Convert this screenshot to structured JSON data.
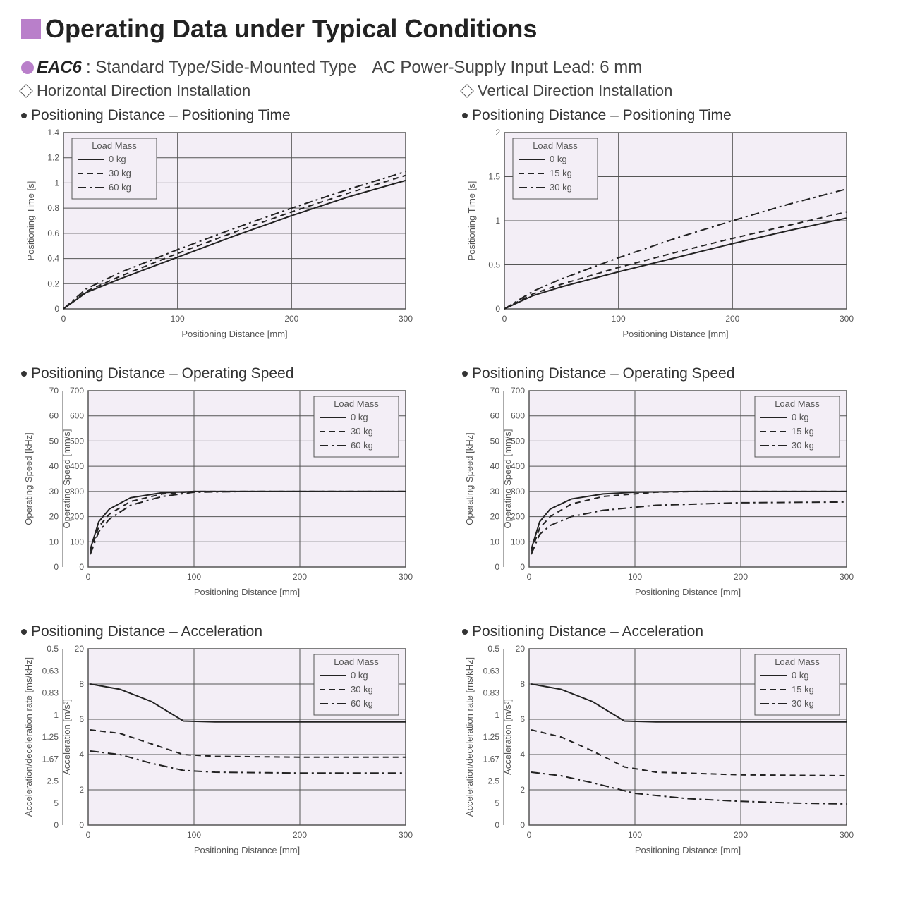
{
  "main_title": "Operating Data under Typical Conditions",
  "sub_label_bold": "EAC6",
  "sub_label_rest": ": Standard Type/Side-Mounted Type",
  "sub_right": "AC Power-Supply Input  Lead: 6 mm",
  "colors": {
    "plot_bg": "#f3eef6",
    "grid": "#555555",
    "line": "#222222",
    "axis_text": "#555555"
  },
  "font": {
    "axis_label_pt": 13,
    "tick_pt": 12,
    "legend_pt": 13
  },
  "columns": [
    {
      "dir_title": "Horizontal Direction Installation",
      "charts": [
        {
          "id": "h-time",
          "title": "Positioning Distance – Positioning Time",
          "xlabel": "Positioning Distance [mm]",
          "ylabel": "Positioning Time [s]",
          "xlim": [
            0,
            300
          ],
          "xticks": [
            0,
            100,
            200,
            300
          ],
          "ylim": [
            0,
            1.4
          ],
          "yticks": [
            0,
            0.2,
            0.4,
            0.6,
            0.8,
            1.0,
            1.2,
            1.4
          ],
          "legend_title": "Load Mass",
          "legend_pos": "top-left",
          "y2": null,
          "series": [
            {
              "label": "0 kg",
              "dash": "solid",
              "points": [
                [
                  0,
                  0
                ],
                [
                  20,
                  0.13
                ],
                [
                  50,
                  0.24
                ],
                [
                  100,
                  0.41
                ],
                [
                  150,
                  0.58
                ],
                [
                  200,
                  0.74
                ],
                [
                  250,
                  0.89
                ],
                [
                  300,
                  1.02
                ]
              ]
            },
            {
              "label": "30 kg",
              "dash": "dashed",
              "points": [
                [
                  0,
                  0
                ],
                [
                  20,
                  0.14
                ],
                [
                  50,
                  0.26
                ],
                [
                  100,
                  0.44
                ],
                [
                  150,
                  0.61
                ],
                [
                  200,
                  0.77
                ],
                [
                  250,
                  0.92
                ],
                [
                  300,
                  1.06
                ]
              ]
            },
            {
              "label": "60 kg",
              "dash": "dashdot",
              "points": [
                [
                  0,
                  0
                ],
                [
                  20,
                  0.16
                ],
                [
                  50,
                  0.29
                ],
                [
                  100,
                  0.47
                ],
                [
                  150,
                  0.64
                ],
                [
                  200,
                  0.8
                ],
                [
                  250,
                  0.95
                ],
                [
                  300,
                  1.09
                ]
              ]
            }
          ]
        },
        {
          "id": "h-speed",
          "title": "Positioning Distance – Operating Speed",
          "xlabel": "Positioning Distance [mm]",
          "ylabel": "Operating Speed [mm/s]",
          "xlim": [
            0,
            300
          ],
          "xticks": [
            0,
            100,
            200,
            300
          ],
          "ylim": [
            0,
            700
          ],
          "yticks": [
            0,
            100,
            200,
            300,
            400,
            500,
            600,
            700
          ],
          "legend_title": "Load Mass",
          "legend_pos": "top-right",
          "y2": {
            "label": "Operating Speed [kHz]",
            "ticks": [
              0,
              10,
              20,
              30,
              40,
              50,
              60,
              70
            ]
          },
          "series": [
            {
              "label": "0 kg",
              "dash": "solid",
              "points": [
                [
                  2,
                  70
                ],
                [
                  10,
                  180
                ],
                [
                  20,
                  230
                ],
                [
                  40,
                  275
                ],
                [
                  70,
                  295
                ],
                [
                  100,
                  300
                ],
                [
                  200,
                  300
                ],
                [
                  300,
                  300
                ]
              ]
            },
            {
              "label": "30 kg",
              "dash": "dashed",
              "points": [
                [
                  2,
                  60
                ],
                [
                  10,
                  160
                ],
                [
                  20,
                  210
                ],
                [
                  40,
                  260
                ],
                [
                  70,
                  290
                ],
                [
                  100,
                  300
                ],
                [
                  200,
                  300
                ],
                [
                  300,
                  300
                ]
              ]
            },
            {
              "label": "60 kg",
              "dash": "dashdot",
              "points": [
                [
                  2,
                  50
                ],
                [
                  10,
                  140
                ],
                [
                  20,
                  190
                ],
                [
                  40,
                  245
                ],
                [
                  70,
                  280
                ],
                [
                  100,
                  297
                ],
                [
                  150,
                  300
                ],
                [
                  300,
                  300
                ]
              ]
            }
          ]
        },
        {
          "id": "h-accel",
          "title": "Positioning Distance – Acceleration",
          "xlabel": "Positioning Distance [mm]",
          "ylabel": "Acceleration [m/s²]",
          "xlim": [
            0,
            300
          ],
          "xticks": [
            0,
            100,
            200,
            300
          ],
          "ylim": [
            0,
            20
          ],
          "yticks": [
            0,
            2,
            4,
            6,
            8,
            20
          ],
          "legend_title": "Load Mass",
          "legend_pos": "top-right",
          "y2": {
            "label": "Acceleration/deceleration rate [ms/kHz]",
            "ticks": [
              0,
              5.0,
              2.5,
              1.67,
              1.25,
              1.0,
              0.83,
              0.63,
              0.5
            ]
          },
          "series": [
            {
              "label": "0 kg",
              "dash": "solid",
              "points": [
                [
                  2,
                  8.0
                ],
                [
                  30,
                  7.7
                ],
                [
                  60,
                  7.0
                ],
                [
                  90,
                  5.9
                ],
                [
                  120,
                  5.85
                ],
                [
                  200,
                  5.85
                ],
                [
                  300,
                  5.85
                ]
              ]
            },
            {
              "label": "30 kg",
              "dash": "dashed",
              "points": [
                [
                  2,
                  5.4
                ],
                [
                  30,
                  5.2
                ],
                [
                  60,
                  4.6
                ],
                [
                  90,
                  4.0
                ],
                [
                  120,
                  3.9
                ],
                [
                  200,
                  3.85
                ],
                [
                  300,
                  3.85
                ]
              ]
            },
            {
              "label": "60 kg",
              "dash": "dashdot",
              "points": [
                [
                  2,
                  4.2
                ],
                [
                  30,
                  4.0
                ],
                [
                  60,
                  3.5
                ],
                [
                  90,
                  3.1
                ],
                [
                  120,
                  3.0
                ],
                [
                  200,
                  2.95
                ],
                [
                  300,
                  2.95
                ]
              ]
            }
          ]
        }
      ]
    },
    {
      "dir_title": "Vertical Direction Installation",
      "charts": [
        {
          "id": "v-time",
          "title": "Positioning Distance – Positioning Time",
          "xlabel": "Positioning Distance [mm]",
          "ylabel": "Positioning Time [s]",
          "xlim": [
            0,
            300
          ],
          "xticks": [
            0,
            100,
            200,
            300
          ],
          "ylim": [
            0,
            2.0
          ],
          "yticks": [
            0,
            0.5,
            1.0,
            1.5,
            2.0
          ],
          "legend_title": "Load Mass",
          "legend_pos": "top-left",
          "y2": null,
          "series": [
            {
              "label": "0 kg",
              "dash": "solid",
              "points": [
                [
                  0,
                  0
                ],
                [
                  25,
                  0.15
                ],
                [
                  50,
                  0.25
                ],
                [
                  100,
                  0.42
                ],
                [
                  150,
                  0.58
                ],
                [
                  200,
                  0.74
                ],
                [
                  250,
                  0.89
                ],
                [
                  300,
                  1.03
                ]
              ]
            },
            {
              "label": "15 kg",
              "dash": "dashed",
              "points": [
                [
                  0,
                  0
                ],
                [
                  25,
                  0.17
                ],
                [
                  50,
                  0.28
                ],
                [
                  100,
                  0.47
                ],
                [
                  150,
                  0.64
                ],
                [
                  200,
                  0.8
                ],
                [
                  250,
                  0.95
                ],
                [
                  300,
                  1.1
                ]
              ]
            },
            {
              "label": "30 kg",
              "dash": "dashdot",
              "points": [
                [
                  0,
                  0
                ],
                [
                  25,
                  0.2
                ],
                [
                  50,
                  0.34
                ],
                [
                  100,
                  0.58
                ],
                [
                  150,
                  0.8
                ],
                [
                  200,
                  1.0
                ],
                [
                  250,
                  1.19
                ],
                [
                  300,
                  1.36
                ]
              ]
            }
          ]
        },
        {
          "id": "v-speed",
          "title": "Positioning Distance – Operating Speed",
          "xlabel": "Positioning Distance [mm]",
          "ylabel": "Operating Speed [mm/s]",
          "xlim": [
            0,
            300
          ],
          "xticks": [
            0,
            100,
            200,
            300
          ],
          "ylim": [
            0,
            700
          ],
          "yticks": [
            0,
            100,
            200,
            300,
            400,
            500,
            600,
            700
          ],
          "legend_title": "Load Mass",
          "legend_pos": "top-right",
          "y2": {
            "label": "Operating Speed [kHz]",
            "ticks": [
              0,
              10,
              20,
              30,
              40,
              50,
              60,
              70
            ]
          },
          "series": [
            {
              "label": "0 kg",
              "dash": "solid",
              "points": [
                [
                  2,
                  70
                ],
                [
                  10,
                  180
                ],
                [
                  20,
                  230
                ],
                [
                  40,
                  270
                ],
                [
                  70,
                  290
                ],
                [
                  100,
                  297
                ],
                [
                  150,
                  300
                ],
                [
                  300,
                  300
                ]
              ]
            },
            {
              "label": "15 kg",
              "dash": "dashed",
              "points": [
                [
                  2,
                  60
                ],
                [
                  10,
                  155
                ],
                [
                  20,
                  200
                ],
                [
                  40,
                  250
                ],
                [
                  70,
                  280
                ],
                [
                  120,
                  297
                ],
                [
                  160,
                  300
                ],
                [
                  300,
                  300
                ]
              ]
            },
            {
              "label": "30 kg",
              "dash": "dashdot",
              "points": [
                [
                  2,
                  50
                ],
                [
                  10,
                  130
                ],
                [
                  20,
                  165
                ],
                [
                  40,
                  200
                ],
                [
                  70,
                  225
                ],
                [
                  120,
                  245
                ],
                [
                  200,
                  255
                ],
                [
                  300,
                  258
                ]
              ]
            }
          ]
        },
        {
          "id": "v-accel",
          "title": "Positioning Distance – Acceleration",
          "xlabel": "Positioning Distance [mm]",
          "ylabel": "Acceleration [m/s²]",
          "xlim": [
            0,
            300
          ],
          "xticks": [
            0,
            100,
            200,
            300
          ],
          "ylim": [
            0,
            20
          ],
          "yticks": [
            0,
            2,
            4,
            6,
            8,
            20
          ],
          "legend_title": "Load Mass",
          "legend_pos": "top-right",
          "y2": {
            "label": "Acceleration/deceleration rate [ms/kHz]",
            "ticks": [
              0,
              5.0,
              2.5,
              1.67,
              1.25,
              1.0,
              0.83,
              0.63,
              0.5
            ]
          },
          "series": [
            {
              "label": "0 kg",
              "dash": "solid",
              "points": [
                [
                  2,
                  8.0
                ],
                [
                  30,
                  7.7
                ],
                [
                  60,
                  7.0
                ],
                [
                  90,
                  5.9
                ],
                [
                  120,
                  5.85
                ],
                [
                  200,
                  5.85
                ],
                [
                  300,
                  5.85
                ]
              ]
            },
            {
              "label": "15 kg",
              "dash": "dashed",
              "points": [
                [
                  2,
                  5.4
                ],
                [
                  30,
                  5.0
                ],
                [
                  60,
                  4.2
                ],
                [
                  90,
                  3.3
                ],
                [
                  120,
                  3.0
                ],
                [
                  200,
                  2.85
                ],
                [
                  300,
                  2.8
                ]
              ]
            },
            {
              "label": "30 kg",
              "dash": "dashdot",
              "points": [
                [
                  2,
                  3.0
                ],
                [
                  30,
                  2.8
                ],
                [
                  60,
                  2.4
                ],
                [
                  100,
                  1.8
                ],
                [
                  150,
                  1.5
                ],
                [
                  200,
                  1.35
                ],
                [
                  250,
                  1.25
                ],
                [
                  300,
                  1.2
                ]
              ]
            }
          ]
        }
      ]
    }
  ]
}
